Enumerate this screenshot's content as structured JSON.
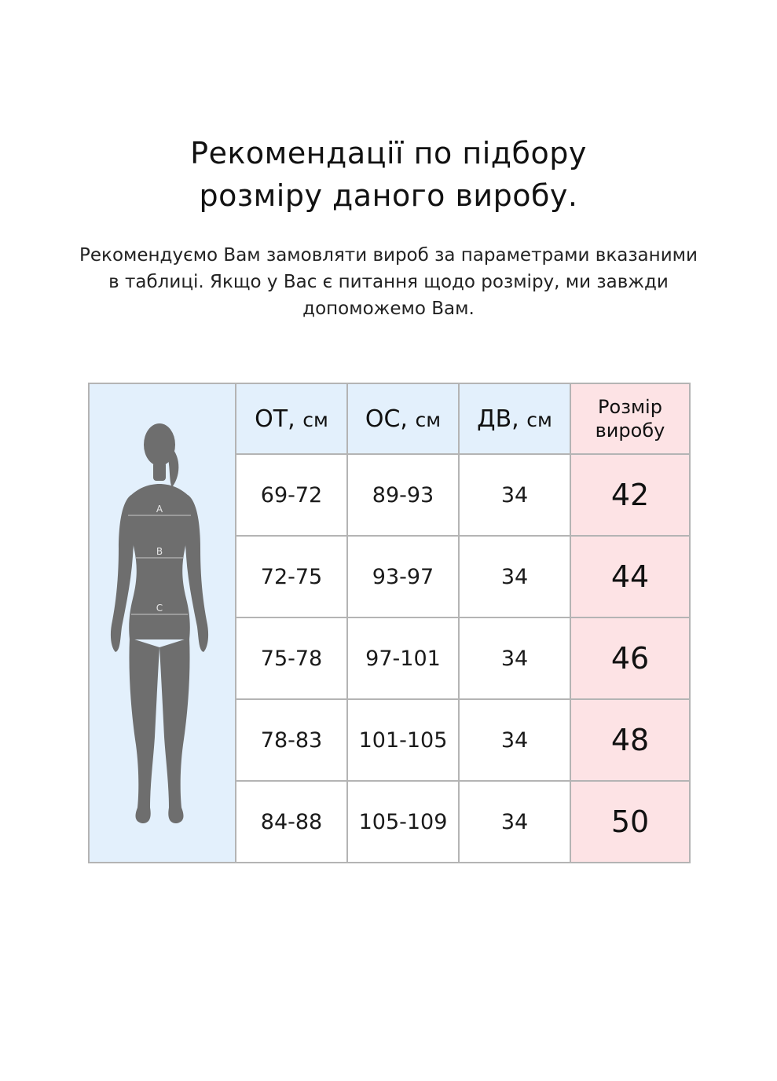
{
  "title_line1": "Рекомендації по підбору",
  "title_line2": "розміру даного виробу.",
  "subtitle_line1": "Рекомендуємо Вам замовляти вироб за параметрами вказаними",
  "subtitle_line2": "в таблиці. Якщо у Вас є питання щодо розміру, ми завжди",
  "subtitle_line3": "допоможемо Вам.",
  "figure": {
    "icon": "female-silhouette-icon",
    "marks": [
      "A",
      "B",
      "C"
    ]
  },
  "table": {
    "headers": [
      {
        "abbr": "ОТ,",
        "unit": "см"
      },
      {
        "abbr": "ОС,",
        "unit": "см"
      },
      {
        "abbr": "ДВ,",
        "unit": "см"
      }
    ],
    "size_header_line1": "Розмір",
    "size_header_line2": "виробу",
    "rows": [
      {
        "ot": "69-72",
        "os": "89-93",
        "dv": "34",
        "size": "42"
      },
      {
        "ot": "72-75",
        "os": "93-97",
        "dv": "34",
        "size": "44"
      },
      {
        "ot": "75-78",
        "os": "97-101",
        "dv": "34",
        "size": "46"
      },
      {
        "ot": "78-83",
        "os": "101-105",
        "dv": "34",
        "size": "48"
      },
      {
        "ot": "84-88",
        "os": "105-109",
        "dv": "34",
        "size": "50"
      }
    ]
  },
  "colors": {
    "header_blue": "#e3f0fc",
    "size_pink": "#fde3e5",
    "grid": "#b4b4b4",
    "silhouette": "#6e6e6e"
  }
}
